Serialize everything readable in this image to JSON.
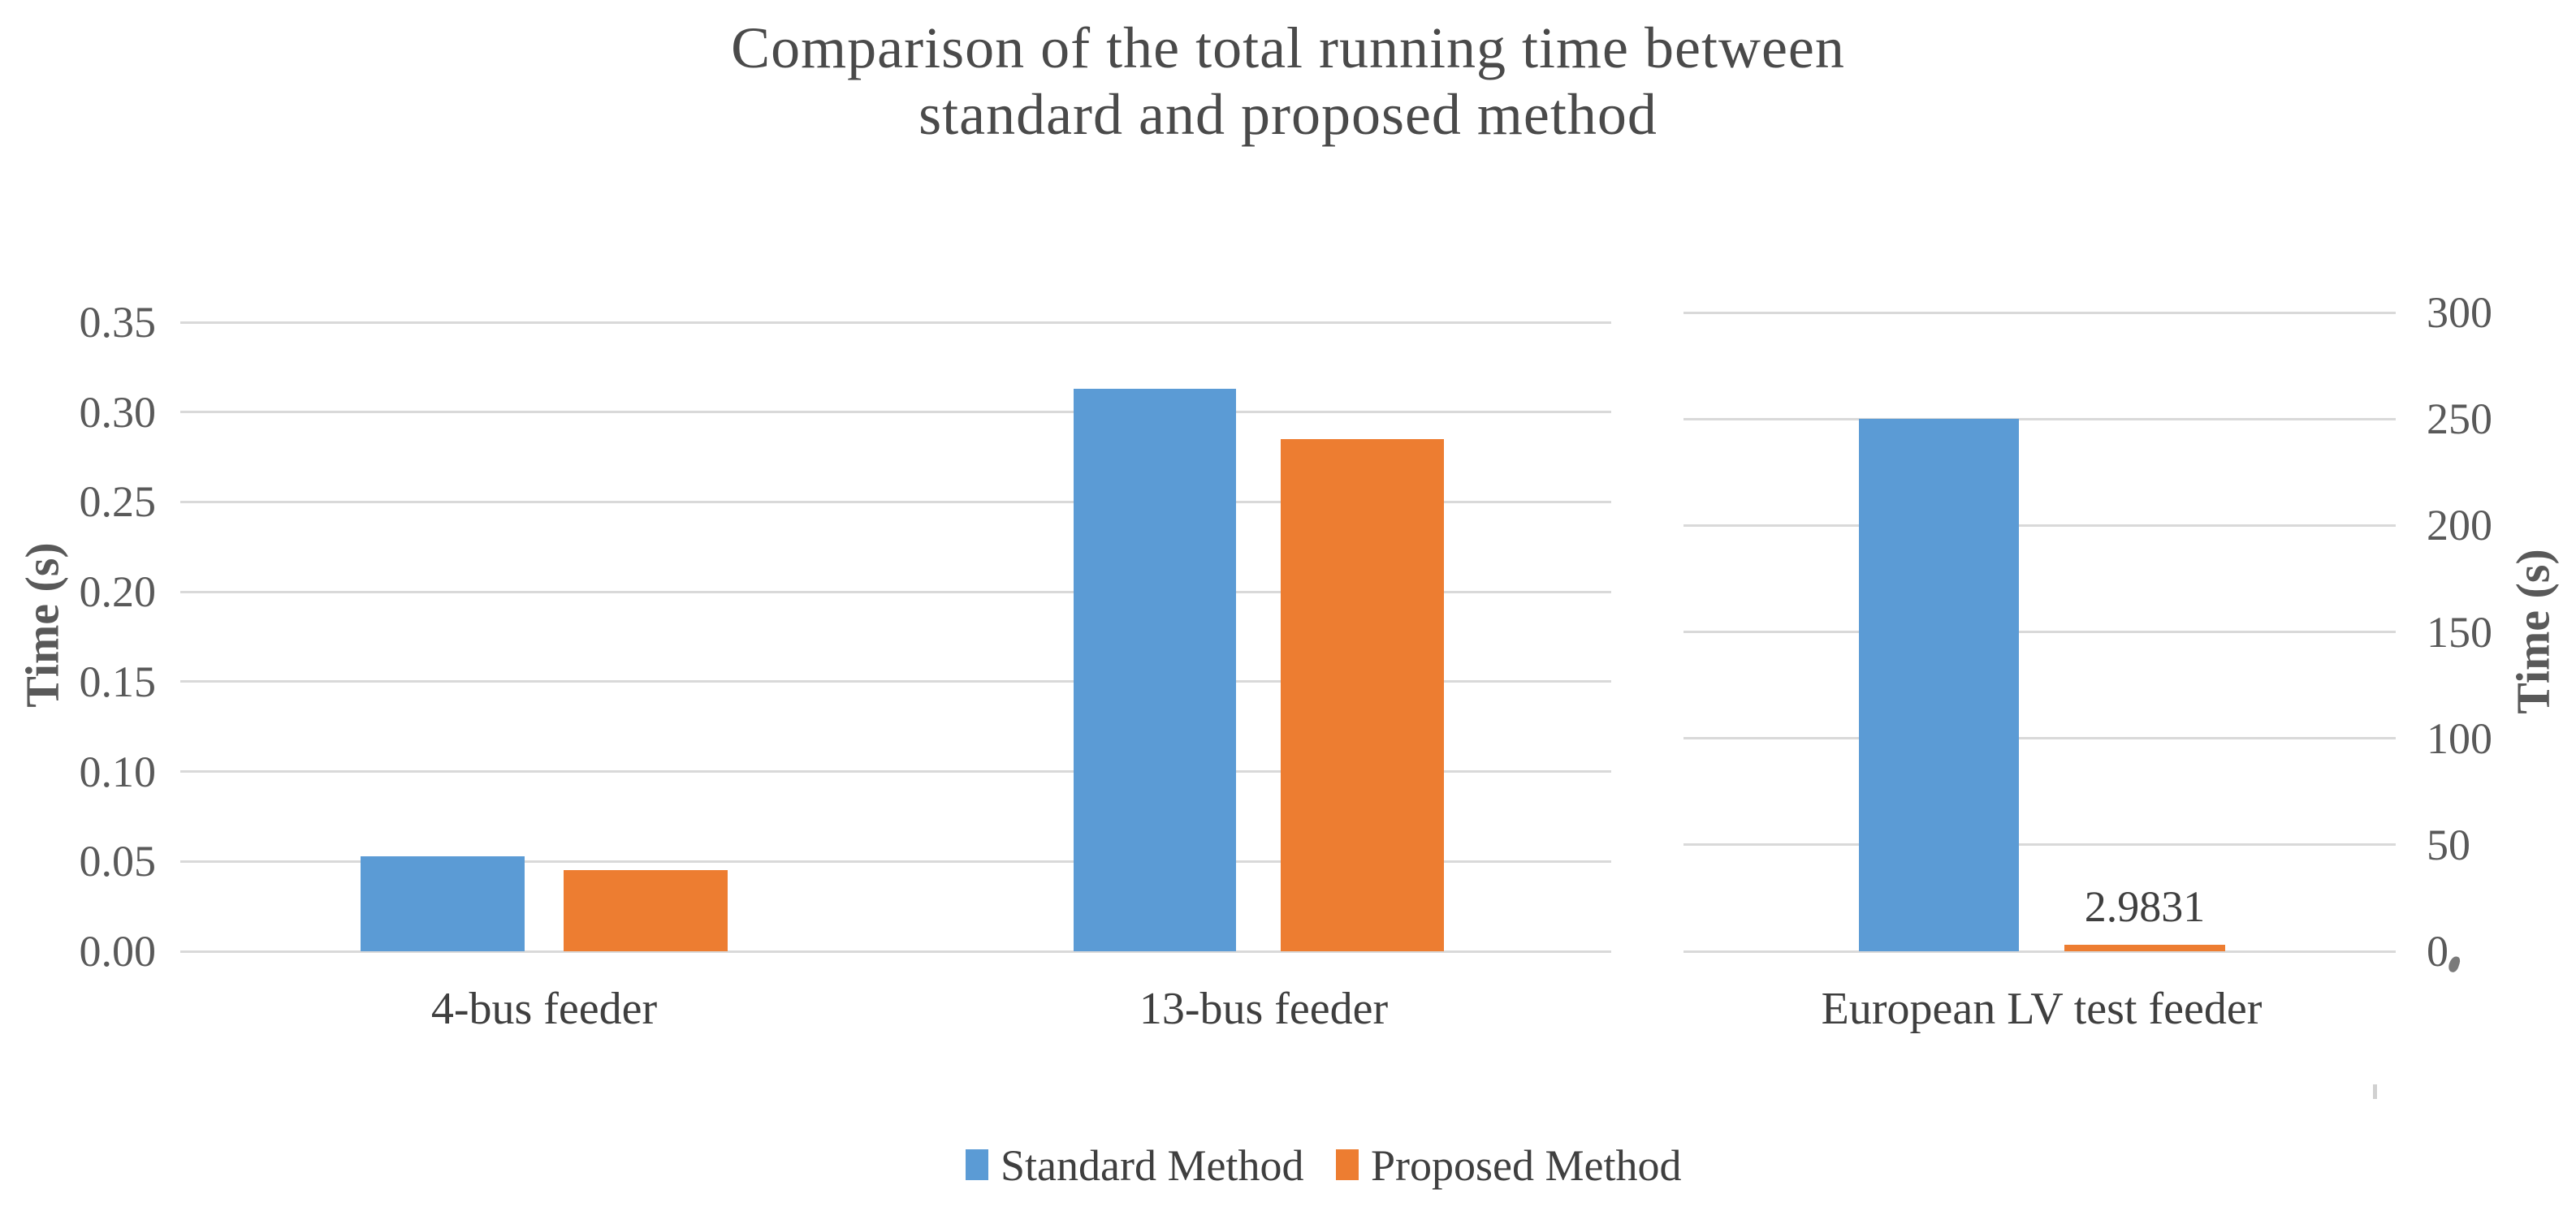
{
  "chart_data": {
    "type": "bar",
    "title": "Comparison of the total running time between standard and proposed method",
    "title_line1": "Comparison of the total running time between",
    "title_line2": "standard and proposed method",
    "grid": true,
    "legend_position": "bottom",
    "legend": [
      "Standard Method",
      "Proposed Method"
    ],
    "panels": [
      {
        "axis_side": "left",
        "ylabel": "Time (s)",
        "ylim": [
          0,
          0.35
        ],
        "yticks": [
          "0.00",
          "0.05",
          "0.10",
          "0.15",
          "0.20",
          "0.25",
          "0.30",
          "0.35"
        ],
        "categories": [
          "4-bus feeder",
          "13-bus feeder"
        ],
        "series": [
          {
            "name": "Standard Method",
            "values": [
              0.053,
              0.313
            ]
          },
          {
            "name": "Proposed Method",
            "values": [
              0.045,
              0.285
            ]
          }
        ]
      },
      {
        "axis_side": "right",
        "ylabel": "Time (s)",
        "ylim": [
          0,
          300
        ],
        "yticks": [
          "0",
          "50",
          "100",
          "150",
          "200",
          "250",
          "300"
        ],
        "categories": [
          "European LV test feeder"
        ],
        "series": [
          {
            "name": "Standard Method",
            "values": [
              250
            ]
          },
          {
            "name": "Proposed Method",
            "values": [
              2.9831
            ]
          }
        ],
        "data_labels": [
          {
            "series": "Proposed Method",
            "category": "European LV test feeder",
            "text": "2.9831"
          }
        ]
      }
    ]
  },
  "colors": {
    "standard_blue": "#5B9BD5",
    "proposed_orange": "#ED7D31",
    "gridline": "#D9D9D9",
    "title_text": "#4A4A4A",
    "tick_text": "#595959",
    "label_text": "#3F3F3F"
  }
}
